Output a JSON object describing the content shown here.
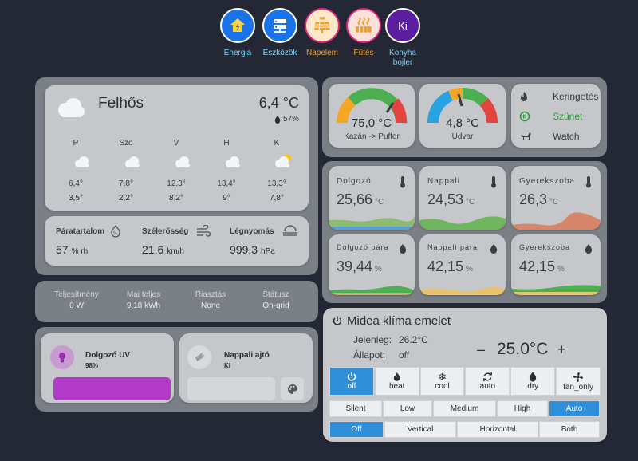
{
  "nav": [
    {
      "label": "Energia",
      "icon": "home-bolt-icon",
      "bg": "#1a73e8",
      "color": "#7fd3f7"
    },
    {
      "label": "Eszközök",
      "icon": "server-icon",
      "bg": "#1a73e8",
      "color": "#7fd3f7"
    },
    {
      "label": "Napelem",
      "icon": "solar-panel-icon",
      "bg": "#fde8c8",
      "color": "#f0a02a"
    },
    {
      "label": "Fűtés",
      "icon": "heating-icon",
      "bg": "#fde0da",
      "color": "#f0a02a"
    },
    {
      "label": "Konyha bojler",
      "icon": "Ki",
      "bg": "#5b1ea0",
      "color": "#7fd3f7"
    }
  ],
  "weather": {
    "condition": "Felhős",
    "temperature": "6,4 °C",
    "humidity": "57%",
    "forecast": [
      {
        "day": "P",
        "high": "6,4°",
        "low": "3,5°"
      },
      {
        "day": "Szo",
        "high": "7,8°",
        "low": "2,2°"
      },
      {
        "day": "V",
        "high": "12,3°",
        "low": "8,2°"
      },
      {
        "day": "H",
        "high": "13,4°",
        "low": "9°"
      },
      {
        "day": "K",
        "high": "13,3°",
        "low": "7,8°"
      }
    ]
  },
  "stats": [
    {
      "label": "Páratartalom",
      "value": "57",
      "unit": "% rh"
    },
    {
      "label": "Szélerősség",
      "value": "21,6",
      "unit": "km/h"
    },
    {
      "label": "Légnyomás",
      "value": "999,3",
      "unit": "hPa"
    }
  ],
  "solar": [
    {
      "label": "Teljesítmény",
      "value": "0 W"
    },
    {
      "label": "Mai teljes",
      "value": "9,18 kWh"
    },
    {
      "label": "Riasztás",
      "value": "None"
    },
    {
      "label": "Státusz",
      "value": "On-grid"
    }
  ],
  "entities": [
    {
      "name": "Dolgozó UV",
      "state": "98%"
    },
    {
      "name": "Nappali ajtó",
      "state": "Ki"
    }
  ],
  "gauges": [
    {
      "value": "75,0 °C",
      "label": "Kazán -> Puffer",
      "fraction": 0.75
    },
    {
      "value": "4,8 °C",
      "label": "Udvar",
      "fraction": 0.43
    }
  ],
  "controls": [
    {
      "label": "Keringetés"
    },
    {
      "label": "Szünet"
    },
    {
      "label": "Watch"
    }
  ],
  "sensors": [
    {
      "name": "Dolgozó",
      "value": "25,66",
      "unit": "°C"
    },
    {
      "name": "Nappali",
      "value": "24,53",
      "unit": "°C"
    },
    {
      "name": "Gyerekszoba",
      "value": "26,3",
      "unit": "°C"
    },
    {
      "name": "Dolgozó pára",
      "value": "39,44",
      "unit": "%"
    },
    {
      "name": "Nappali pára",
      "value": "42,15",
      "unit": "%"
    },
    {
      "name": "Gyerekszoba",
      "value": "42,15",
      "unit": "%"
    }
  ],
  "climate": {
    "title": "Midea klíma emelet",
    "current_label": "Jelenleg:",
    "current_value": "26.2°C",
    "state_label": "Állapot:",
    "state_value": "off",
    "minus": "–",
    "target": "25.0°C",
    "plus": "+",
    "modes": [
      "off",
      "heat",
      "cool",
      "auto",
      "dry",
      "fan_only"
    ],
    "active_mode": "off",
    "fan_modes": [
      "Silent",
      "Low",
      "Medium",
      "High",
      "Auto"
    ],
    "active_fan": "Auto",
    "swing_modes": [
      "Off",
      "Vertical",
      "Horizontal",
      "Both"
    ],
    "active_swing": "Off"
  },
  "colors": {
    "accent": "#2f8fd9",
    "gauge_red": "#e04540",
    "gauge_green": "#4caf50",
    "gauge_orange": "#f5a623",
    "gauge_blue": "#29a3e0",
    "uv_purple": "#b23ac8"
  }
}
